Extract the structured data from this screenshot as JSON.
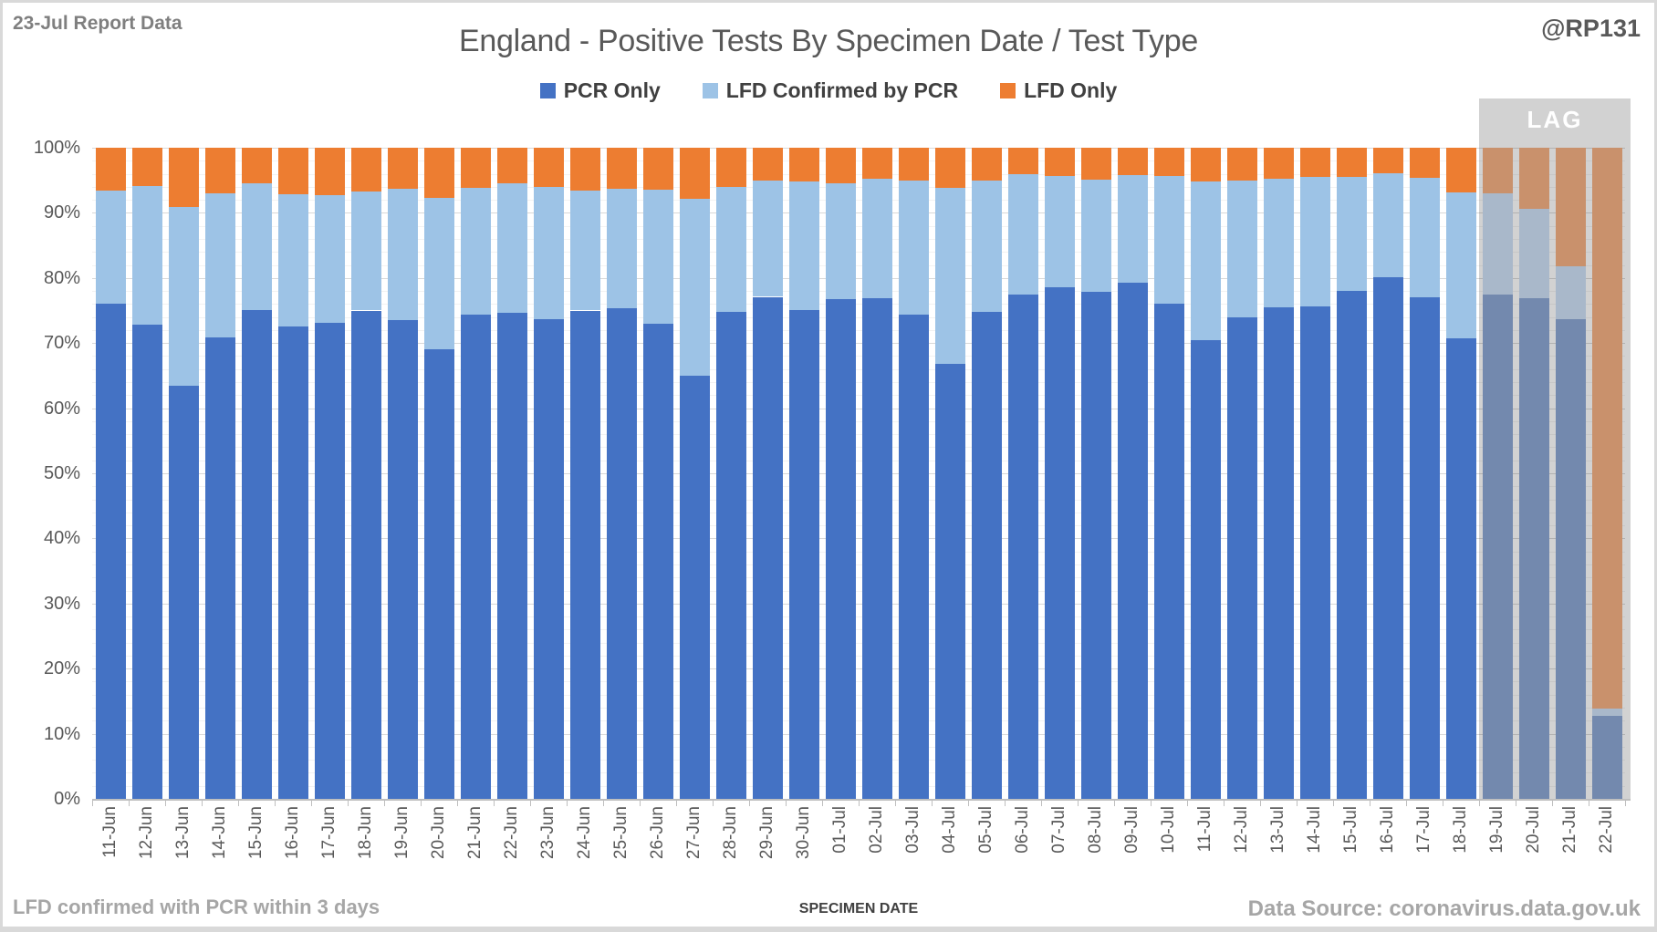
{
  "header": {
    "report_label": "23-Jul Report Data",
    "handle": "@RP131"
  },
  "footer": {
    "note": "LFD confirmed with PCR within 3 days",
    "source": "Data Source: coronavirus.data.gov.uk"
  },
  "chart_data": {
    "type": "bar",
    "stacked": true,
    "unit": "percent",
    "title": "England - Positive Tests By Specimen Date / Test Type",
    "xlabel": "SPECIMEN DATE",
    "ylabel": "",
    "ylim": [
      0,
      100
    ],
    "ytick_step": 10,
    "ytick_suffix": "%",
    "minor_grid_step": 2,
    "grid": true,
    "legend_position": "top",
    "lag_label": "LAG",
    "lag_start": "19-Jul",
    "lag_backdrop_color": "#d2d2d2",
    "categories": [
      "11-Jun",
      "12-Jun",
      "13-Jun",
      "14-Jun",
      "15-Jun",
      "16-Jun",
      "17-Jun",
      "18-Jun",
      "19-Jun",
      "20-Jun",
      "21-Jun",
      "22-Jun",
      "23-Jun",
      "24-Jun",
      "25-Jun",
      "26-Jun",
      "27-Jun",
      "28-Jun",
      "29-Jun",
      "30-Jun",
      "01-Jul",
      "02-Jul",
      "03-Jul",
      "04-Jul",
      "05-Jul",
      "06-Jul",
      "07-Jul",
      "08-Jul",
      "09-Jul",
      "10-Jul",
      "11-Jul",
      "12-Jul",
      "13-Jul",
      "14-Jul",
      "15-Jul",
      "16-Jul",
      "17-Jul",
      "18-Jul",
      "19-Jul",
      "20-Jul",
      "21-Jul",
      "22-Jul"
    ],
    "series": [
      {
        "name": "PCR Only",
        "color": "#4472C4",
        "muted_color": "#7389AE",
        "values": [
          76.0,
          72.8,
          63.4,
          70.8,
          75.1,
          72.5,
          73.1,
          75.0,
          73.5,
          69.0,
          74.4,
          74.6,
          73.7,
          75.0,
          75.3,
          72.9,
          65.0,
          74.8,
          77.1,
          75.1,
          76.7,
          76.9,
          74.3,
          66.8,
          74.8,
          77.4,
          78.6,
          77.9,
          79.3,
          76.1,
          70.5,
          74.0,
          75.5,
          75.6,
          78.0,
          80.1,
          77.0,
          70.7,
          77.4,
          76.9,
          73.7,
          12.7
        ]
      },
      {
        "name": "LFD Confirmed by PCR",
        "color": "#9DC3E6",
        "muted_color": "#A9B8CA",
        "values": [
          17.4,
          21.3,
          27.5,
          22.2,
          19.4,
          20.4,
          19.6,
          18.3,
          20.2,
          23.3,
          19.5,
          20.0,
          20.3,
          18.4,
          18.4,
          20.7,
          27.2,
          19.2,
          17.8,
          19.7,
          17.9,
          18.4,
          20.7,
          27.0,
          20.1,
          18.6,
          17.0,
          17.2,
          16.5,
          19.6,
          24.3,
          20.9,
          19.7,
          19.9,
          17.5,
          16.0,
          18.4,
          22.4,
          15.6,
          13.7,
          8.1,
          1.2
        ]
      },
      {
        "name": "LFD Only",
        "color": "#ED7D31",
        "muted_color": "#C9916C",
        "values": [
          6.6,
          5.9,
          9.1,
          7.0,
          5.5,
          7.1,
          7.3,
          6.7,
          6.3,
          7.7,
          6.1,
          5.4,
          6.0,
          6.6,
          6.3,
          6.4,
          7.8,
          6.0,
          5.1,
          5.2,
          5.4,
          4.7,
          5.0,
          6.2,
          5.1,
          4.0,
          4.4,
          4.9,
          4.2,
          4.3,
          5.2,
          5.1,
          4.8,
          4.5,
          4.5,
          3.9,
          4.6,
          6.9,
          7.0,
          9.4,
          18.2,
          86.1
        ]
      }
    ]
  }
}
